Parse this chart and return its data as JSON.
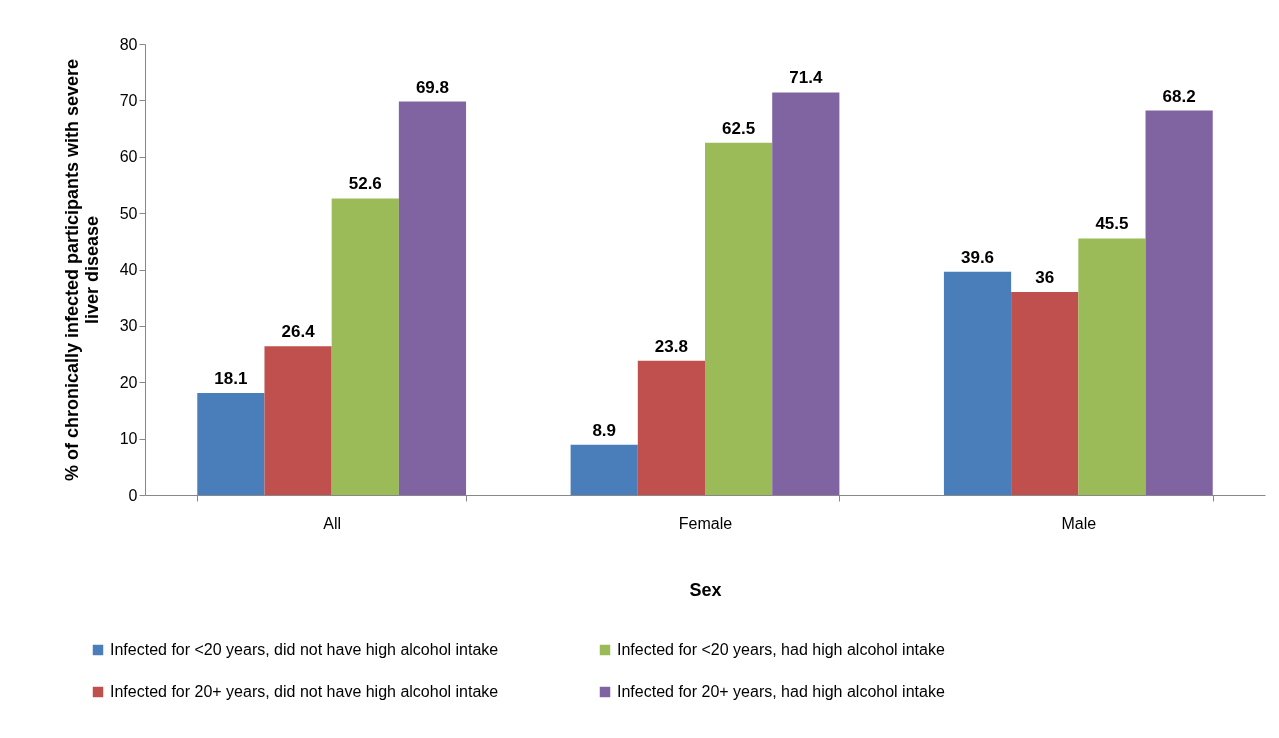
{
  "chart_data": {
    "type": "bar",
    "xlabel": "Sex",
    "ylabel": "% of chronically infected participants with severe liver disease",
    "categories": [
      "All",
      "Female",
      "Male"
    ],
    "series": [
      {
        "name": "Infected for <20 years, did not have high alcohol intake",
        "color": "#4a7ebb",
        "values": [
          18.1,
          8.9,
          39.6
        ]
      },
      {
        "name": "Infected for 20+ years, did not have high alcohol intake",
        "color": "#c0504d",
        "values": [
          26.4,
          23.8,
          36
        ]
      },
      {
        "name": "Infected for <20 years, had high alcohol intake",
        "color": "#9bbb59",
        "values": [
          52.6,
          62.5,
          45.5
        ]
      },
      {
        "name": "Infected for 20+ years, had high alcohol intake",
        "color": "#8064a2",
        "values": [
          69.8,
          71.4,
          68.2
        ]
      }
    ],
    "ylim": [
      0,
      80
    ],
    "yticks": [
      0,
      10,
      20,
      30,
      40,
      50,
      60,
      70,
      80
    ],
    "grid": false,
    "legend": "bottom",
    "data_labels": true
  }
}
